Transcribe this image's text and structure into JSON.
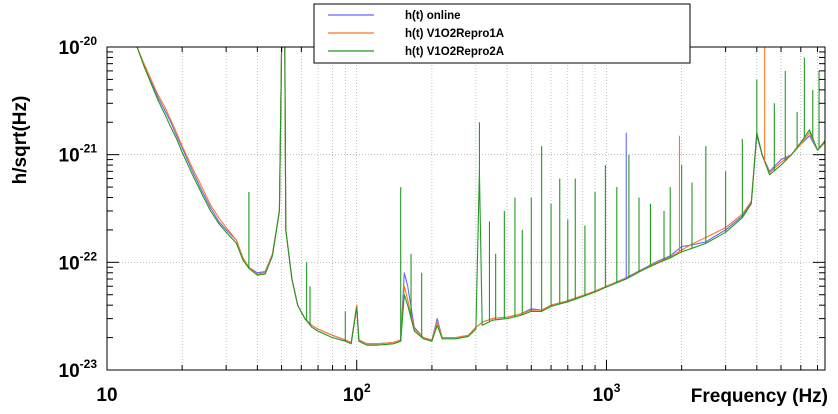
{
  "chart_data": {
    "type": "line",
    "title": "",
    "xlabel": "Frequency (Hz)",
    "ylabel": "h/sqrt(Hz)",
    "xscale": "log",
    "yscale": "log",
    "xlim": [
      10,
      7500
    ],
    "ylim": [
      1e-23,
      1e-20
    ],
    "grid": true,
    "legend_position": "top-center",
    "x_ticks": [
      {
        "value": 10,
        "base": "10",
        "exp": ""
      },
      {
        "value": 100,
        "base": "10",
        "exp": "2"
      },
      {
        "value": 1000,
        "base": "10",
        "exp": "3"
      }
    ],
    "y_ticks": [
      {
        "value": 1e-23,
        "base": "10",
        "exp": "-23"
      },
      {
        "value": 1e-22,
        "base": "10",
        "exp": "-22"
      },
      {
        "value": 1e-21,
        "base": "10",
        "exp": "-21"
      },
      {
        "value": 1e-20,
        "base": "10",
        "exp": "-20"
      }
    ],
    "series": [
      {
        "name": "h(t) online",
        "color": "#6666ff",
        "points": [
          [
            13.2,
            1e-20
          ],
          [
            14,
            7e-21
          ],
          [
            15,
            4.8e-21
          ],
          [
            16,
            3.4e-21
          ],
          [
            17,
            2.6e-21
          ],
          [
            18,
            2e-21
          ],
          [
            19,
            1.5e-21
          ],
          [
            20,
            1.15e-21
          ],
          [
            22,
            7e-22
          ],
          [
            24,
            4.6e-22
          ],
          [
            26,
            3.2e-22
          ],
          [
            28,
            2.4e-22
          ],
          [
            30,
            2e-22
          ],
          [
            33,
            1.6e-22
          ],
          [
            35,
            1.1e-22
          ],
          [
            37,
            9e-23
          ],
          [
            40,
            8e-23
          ],
          [
            43,
            8.2e-23
          ],
          [
            46,
            1.2e-22
          ],
          [
            49,
            3e-22
          ],
          [
            50,
            1e-20
          ],
          [
            51.5,
            1e-20
          ],
          [
            52,
            2e-22
          ],
          [
            55,
            7e-23
          ],
          [
            58,
            4e-23
          ],
          [
            62,
            3e-23
          ],
          [
            66,
            2.6e-23
          ],
          [
            70,
            2.4e-23
          ],
          [
            80,
            2.1e-23
          ],
          [
            90,
            1.9e-23
          ],
          [
            95,
            1.8e-23
          ],
          [
            100,
            4e-23
          ],
          [
            102,
            1.9e-23
          ],
          [
            110,
            1.75e-23
          ],
          [
            120,
            1.75e-23
          ],
          [
            140,
            1.8e-23
          ],
          [
            150,
            1.9e-23
          ],
          [
            155,
            8e-23
          ],
          [
            160,
            6e-23
          ],
          [
            170,
            2.5e-23
          ],
          [
            185,
            2e-23
          ],
          [
            200,
            1.9e-23
          ],
          [
            210,
            3e-23
          ],
          [
            220,
            2e-23
          ],
          [
            250,
            2e-23
          ],
          [
            280,
            2.1e-23
          ],
          [
            300,
            2.5e-23
          ],
          [
            320,
            2.8e-23
          ],
          [
            350,
            3e-23
          ],
          [
            400,
            3.1e-23
          ],
          [
            450,
            3.3e-23
          ],
          [
            500,
            3.7e-23
          ],
          [
            550,
            3.6e-23
          ],
          [
            600,
            4e-23
          ],
          [
            700,
            4.4e-23
          ],
          [
            800,
            4.9e-23
          ],
          [
            900,
            5.4e-23
          ],
          [
            1000,
            6e-23
          ],
          [
            1200,
            7.2e-23
          ],
          [
            1400,
            8.7e-23
          ],
          [
            1600,
            1.02e-22
          ],
          [
            1800,
            1.15e-22
          ],
          [
            2000,
            1.4e-22
          ],
          [
            2200,
            1.45e-22
          ],
          [
            2500,
            1.55e-22
          ],
          [
            3000,
            2e-22
          ],
          [
            3500,
            2.7e-22
          ],
          [
            3800,
            3.6e-22
          ],
          [
            4000,
            1.5e-21
          ],
          [
            4200,
            1e-21
          ],
          [
            4500,
            7e-22
          ],
          [
            5000,
            9e-22
          ],
          [
            5500,
            1e-21
          ],
          [
            6000,
            1.25e-21
          ],
          [
            6500,
            1.5e-21
          ],
          [
            7000,
            1.1e-21
          ],
          [
            7500,
            1.3e-21
          ]
        ]
      },
      {
        "name": "h(t) V1O2Repro1A",
        "color": "#ff7722",
        "points": [
          [
            13.2,
            1e-20
          ],
          [
            14,
            7.2e-21
          ],
          [
            15,
            5e-21
          ],
          [
            16,
            3.6e-21
          ],
          [
            17,
            2.8e-21
          ],
          [
            18,
            2.1e-21
          ],
          [
            19,
            1.6e-21
          ],
          [
            20,
            1.2e-21
          ],
          [
            22,
            7.5e-22
          ],
          [
            24,
            5e-22
          ],
          [
            26,
            3.4e-22
          ],
          [
            28,
            2.6e-22
          ],
          [
            30,
            2.1e-22
          ],
          [
            33,
            1.6e-22
          ],
          [
            35,
            1.1e-22
          ],
          [
            37,
            9e-23
          ],
          [
            40,
            7.8e-23
          ],
          [
            43,
            8e-23
          ],
          [
            46,
            1.2e-22
          ],
          [
            49,
            3e-22
          ],
          [
            50,
            1e-20
          ],
          [
            51.5,
            1e-20
          ],
          [
            52,
            2e-22
          ],
          [
            55,
            7e-23
          ],
          [
            58,
            4e-23
          ],
          [
            62,
            3e-23
          ],
          [
            66,
            2.6e-23
          ],
          [
            70,
            2.4e-23
          ],
          [
            80,
            2.1e-23
          ],
          [
            90,
            1.9e-23
          ],
          [
            95,
            1.8e-23
          ],
          [
            100,
            4e-23
          ],
          [
            102,
            1.9e-23
          ],
          [
            110,
            1.75e-23
          ],
          [
            120,
            1.75e-23
          ],
          [
            140,
            1.8e-23
          ],
          [
            150,
            1.9e-23
          ],
          [
            155,
            6e-23
          ],
          [
            160,
            4.5e-23
          ],
          [
            170,
            2.4e-23
          ],
          [
            185,
            2e-23
          ],
          [
            200,
            1.9e-23
          ],
          [
            210,
            2.8e-23
          ],
          [
            220,
            2e-23
          ],
          [
            250,
            2e-23
          ],
          [
            280,
            2.1e-23
          ],
          [
            300,
            2.5e-23
          ],
          [
            320,
            2.8e-23
          ],
          [
            350,
            3e-23
          ],
          [
            400,
            3.1e-23
          ],
          [
            450,
            3.3e-23
          ],
          [
            500,
            3.6e-23
          ],
          [
            550,
            3.6e-23
          ],
          [
            600,
            4e-23
          ],
          [
            700,
            4.4e-23
          ],
          [
            800,
            4.9e-23
          ],
          [
            900,
            5.4e-23
          ],
          [
            1000,
            6e-23
          ],
          [
            1200,
            7.1e-23
          ],
          [
            1400,
            8.6e-23
          ],
          [
            1600,
            1e-22
          ],
          [
            1800,
            1.12e-22
          ],
          [
            2000,
            1.3e-22
          ],
          [
            2200,
            1.48e-22
          ],
          [
            2500,
            1.7e-22
          ],
          [
            3000,
            2.1e-22
          ],
          [
            3500,
            2.8e-22
          ],
          [
            3800,
            3.7e-22
          ],
          [
            4000,
            1.6e-21
          ],
          [
            4200,
            1e-21
          ],
          [
            4500,
            6.8e-22
          ],
          [
            5000,
            8.5e-22
          ],
          [
            5500,
            1e-21
          ],
          [
            6000,
            1.25e-21
          ],
          [
            6500,
            1.6e-21
          ],
          [
            7000,
            1.1e-21
          ],
          [
            7500,
            1.3e-21
          ]
        ]
      },
      {
        "name": "h(t) V1O2Repro2A",
        "color": "#229922",
        "points": [
          [
            13.2,
            1e-20
          ],
          [
            14,
            6.8e-21
          ],
          [
            15,
            4.6e-21
          ],
          [
            16,
            3.2e-21
          ],
          [
            17,
            2.4e-21
          ],
          [
            18,
            1.8e-21
          ],
          [
            19,
            1.4e-21
          ],
          [
            20,
            1.05e-21
          ],
          [
            22,
            6.5e-22
          ],
          [
            24,
            4.3e-22
          ],
          [
            26,
            3e-22
          ],
          [
            28,
            2.3e-22
          ],
          [
            30,
            1.9e-22
          ],
          [
            33,
            1.5e-22
          ],
          [
            35,
            1.05e-22
          ],
          [
            37,
            8.8e-23
          ],
          [
            40,
            7.6e-23
          ],
          [
            43,
            7.8e-23
          ],
          [
            46,
            1.15e-22
          ],
          [
            49,
            3e-22
          ],
          [
            50,
            1e-20
          ],
          [
            51.5,
            1e-20
          ],
          [
            52,
            2e-22
          ],
          [
            55,
            7e-23
          ],
          [
            58,
            4e-23
          ],
          [
            62,
            3e-23
          ],
          [
            66,
            2.5e-23
          ],
          [
            70,
            2.3e-23
          ],
          [
            80,
            2e-23
          ],
          [
            90,
            1.85e-23
          ],
          [
            95,
            1.75e-23
          ],
          [
            100,
            3.8e-23
          ],
          [
            102,
            1.85e-23
          ],
          [
            110,
            1.7e-23
          ],
          [
            120,
            1.7e-23
          ],
          [
            140,
            1.75e-23
          ],
          [
            150,
            1.85e-23
          ],
          [
            155,
            5e-23
          ],
          [
            160,
            4e-23
          ],
          [
            170,
            2.3e-23
          ],
          [
            185,
            1.95e-23
          ],
          [
            200,
            1.85e-23
          ],
          [
            210,
            2.6e-23
          ],
          [
            220,
            1.95e-23
          ],
          [
            250,
            1.95e-23
          ],
          [
            280,
            2.05e-23
          ],
          [
            300,
            2.4e-23
          ],
          [
            310,
            7e-22
          ],
          [
            318,
            2.6e-23
          ],
          [
            350,
            2.9e-23
          ],
          [
            400,
            3e-23
          ],
          [
            450,
            3.2e-23
          ],
          [
            500,
            3.5e-23
          ],
          [
            550,
            3.5e-23
          ],
          [
            600,
            3.9e-23
          ],
          [
            700,
            4.3e-23
          ],
          [
            800,
            4.8e-23
          ],
          [
            900,
            5.3e-23
          ],
          [
            1000,
            5.9e-23
          ],
          [
            1200,
            7e-23
          ],
          [
            1400,
            8.5e-23
          ],
          [
            1600,
            9.8e-23
          ],
          [
            1800,
            1.1e-22
          ],
          [
            2000,
            1.25e-22
          ],
          [
            2200,
            1.35e-22
          ],
          [
            2500,
            1.5e-22
          ],
          [
            3000,
            1.9e-22
          ],
          [
            3500,
            2.6e-22
          ],
          [
            3800,
            3.5e-22
          ],
          [
            4000,
            1.6e-21
          ],
          [
            4200,
            1e-21
          ],
          [
            4500,
            6.5e-22
          ],
          [
            5000,
            8e-22
          ],
          [
            5500,
            1e-21
          ],
          [
            6000,
            1.3e-21
          ],
          [
            6500,
            1.7e-21
          ],
          [
            7000,
            1.1e-21
          ],
          [
            7500,
            1.35e-21
          ]
        ]
      }
    ],
    "spikes": [
      {
        "x": 37,
        "y": 4.5e-22,
        "color": "#229922"
      },
      {
        "x": 63,
        "y": 1e-22,
        "color": "#229922"
      },
      {
        "x": 65,
        "y": 6e-23,
        "color": "#229922"
      },
      {
        "x": 90,
        "y": 3.5e-23,
        "color": "#229922"
      },
      {
        "x": 150,
        "y": 5e-22,
        "color": "#229922"
      },
      {
        "x": 165,
        "y": 1.2e-22,
        "color": "#229922"
      },
      {
        "x": 182,
        "y": 8e-23,
        "color": "#229922"
      },
      {
        "x": 310,
        "y": 2e-21,
        "color": "#229922"
      },
      {
        "x": 340,
        "y": 2.4e-22,
        "color": "#229922"
      },
      {
        "x": 360,
        "y": 1.2e-22,
        "color": "#229922"
      },
      {
        "x": 390,
        "y": 3e-22,
        "color": "#229922"
      },
      {
        "x": 430,
        "y": 4e-22,
        "color": "#229922"
      },
      {
        "x": 460,
        "y": 2e-22,
        "color": "#229922"
      },
      {
        "x": 500,
        "y": 4e-22,
        "color": "#229922"
      },
      {
        "x": 550,
        "y": 1.2e-21,
        "color": "#229922"
      },
      {
        "x": 600,
        "y": 3.5e-22,
        "color": "#229922"
      },
      {
        "x": 650,
        "y": 6e-22,
        "color": "#229922"
      },
      {
        "x": 700,
        "y": 2.5e-22,
        "color": "#229922"
      },
      {
        "x": 750,
        "y": 6e-22,
        "color": "#229922"
      },
      {
        "x": 820,
        "y": 2.2e-22,
        "color": "#229922"
      },
      {
        "x": 900,
        "y": 4.5e-22,
        "color": "#229922"
      },
      {
        "x": 990,
        "y": 8e-22,
        "color": "#229922"
      },
      {
        "x": 1100,
        "y": 5e-22,
        "color": "#229922"
      },
      {
        "x": 1200,
        "y": 1.6e-21,
        "color": "#6666ff"
      },
      {
        "x": 1230,
        "y": 1e-21,
        "color": "#229922"
      },
      {
        "x": 1350,
        "y": 4e-22,
        "color": "#229922"
      },
      {
        "x": 1500,
        "y": 3.5e-22,
        "color": "#229922"
      },
      {
        "x": 1700,
        "y": 3e-22,
        "color": "#229922"
      },
      {
        "x": 1800,
        "y": 5e-22,
        "color": "#229922"
      },
      {
        "x": 1960,
        "y": 1.5e-21,
        "color": "#ff7722"
      },
      {
        "x": 2000,
        "y": 8e-22,
        "color": "#229922"
      },
      {
        "x": 2200,
        "y": 5.5e-22,
        "color": "#229922"
      },
      {
        "x": 2500,
        "y": 1.2e-21,
        "color": "#229922"
      },
      {
        "x": 3000,
        "y": 7e-22,
        "color": "#229922"
      },
      {
        "x": 3500,
        "y": 1.4e-21,
        "color": "#229922"
      },
      {
        "x": 4000,
        "y": 5e-21,
        "color": "#229922"
      },
      {
        "x": 4300,
        "y": 1.5e-20,
        "color": "#ff7722"
      },
      {
        "x": 4700,
        "y": 3e-21,
        "color": "#229922"
      },
      {
        "x": 5200,
        "y": 6e-21,
        "color": "#229922"
      },
      {
        "x": 5800,
        "y": 2.5e-21,
        "color": "#229922"
      },
      {
        "x": 6200,
        "y": 8e-21,
        "color": "#229922"
      },
      {
        "x": 6700,
        "y": 4e-21,
        "color": "#229922"
      },
      {
        "x": 7100,
        "y": 6e-21,
        "color": "#229922"
      }
    ]
  }
}
